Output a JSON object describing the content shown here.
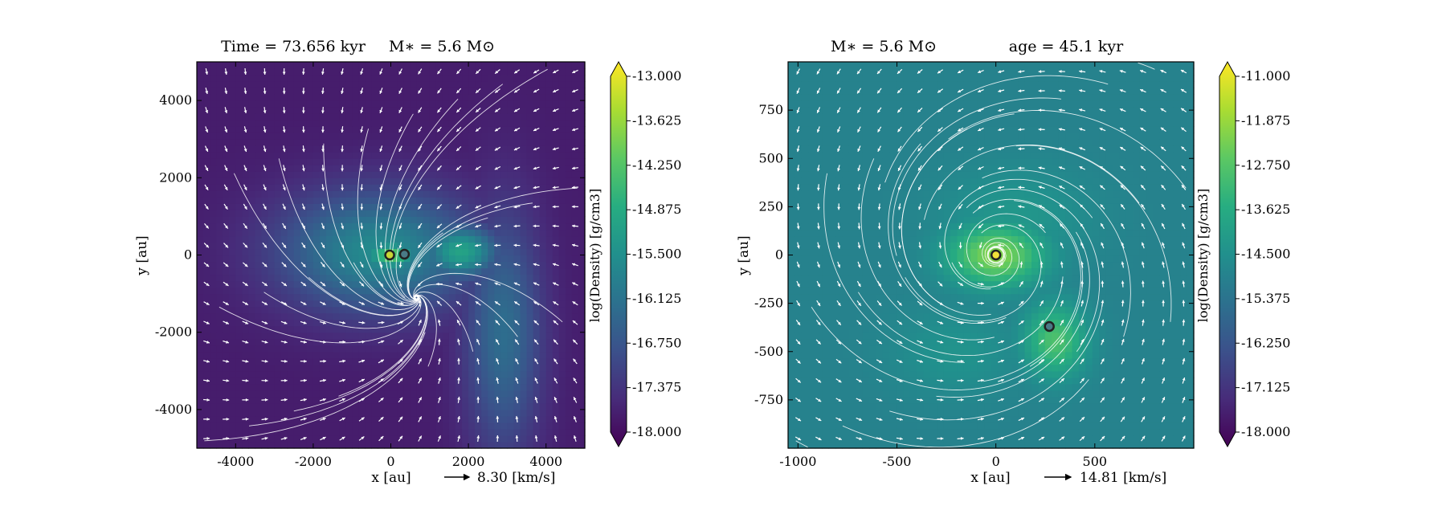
{
  "chart_data": [
    {
      "type": "heatmap",
      "title_parts": [
        "Time = 73.656 kyr",
        "M∗ = 5.6 M⊙"
      ],
      "xlabel": "x [au]",
      "ylabel": "y [au]",
      "xlim": [
        -5000,
        5000
      ],
      "ylim": [
        -5000,
        5000
      ],
      "xticks": [
        -4000,
        -2000,
        0,
        2000,
        4000
      ],
      "yticks": [
        -4000,
        -2000,
        0,
        2000,
        4000
      ],
      "colorbar": {
        "label": "log(Density) [g/cm3]",
        "min": -18.0,
        "max": -13.0,
        "ticks": [
          "-13.000",
          "-13.625",
          "-14.250",
          "-14.875",
          "-15.500",
          "-16.125",
          "-16.750",
          "-17.375",
          "-18.000"
        ]
      },
      "velocity_key": "8.30 [km/s]",
      "sinks": [
        {
          "x": -30,
          "y": 0,
          "color": "#c8d635"
        },
        {
          "x": 350,
          "y": 20,
          "color": "#4a7a86"
        }
      ],
      "density_peaks": [
        {
          "x": 0,
          "y": 0,
          "log_rho": -14.3,
          "sx": 500,
          "sy": 280
        },
        {
          "x": 1800,
          "y": 100,
          "log_rho": -15.1,
          "sx": 700,
          "sy": 500
        },
        {
          "x": -300,
          "y": 100,
          "log_rho": -15.6,
          "sx": 1800,
          "sy": 1100
        },
        {
          "x": 2900,
          "y": -2000,
          "log_rho": -16.2,
          "sx": 700,
          "sy": 2200
        }
      ],
      "background_log_rho": -17.6
    },
    {
      "type": "heatmap",
      "title_parts": [
        "M∗ = 5.6 M⊙",
        "age = 45.1 kyr"
      ],
      "xlabel": "x [au]",
      "ylabel": "y [au]",
      "xlim": [
        -1050,
        1000
      ],
      "ylim": [
        -1000,
        1000
      ],
      "xticks": [
        -1000,
        -500,
        0,
        500
      ],
      "yticks": [
        -750,
        -500,
        -250,
        0,
        250,
        500,
        750
      ],
      "colorbar": {
        "label": "log(Density) [g/cm3]",
        "min": -18.0,
        "max": -11.0,
        "ticks": [
          "-11.000",
          "-11.875",
          "-12.750",
          "-13.625",
          "-14.500",
          "-15.375",
          "-16.250",
          "-17.125",
          "-18.000"
        ]
      },
      "velocity_key": "14.81 [km/s]",
      "sinks": [
        {
          "x": 0,
          "y": 0,
          "color": "#f2e13a"
        },
        {
          "x": 270,
          "y": -370,
          "color": "#4a7a86"
        }
      ],
      "density_peaks": [
        {
          "x": 0,
          "y": 0,
          "log_rho": -12.3,
          "sx": 170,
          "sy": 110
        },
        {
          "x": 300,
          "y": -440,
          "log_rho": -13.0,
          "sx": 110,
          "sy": 130
        },
        {
          "x": 100,
          "y": 200,
          "log_rho": -14.3,
          "sx": 260,
          "sy": 180
        },
        {
          "x": -200,
          "y": -500,
          "log_rho": -14.4,
          "sx": 220,
          "sy": 160
        }
      ],
      "background_log_rho": -14.9
    }
  ]
}
